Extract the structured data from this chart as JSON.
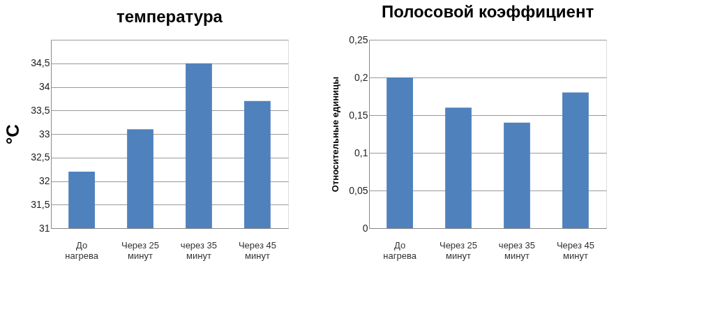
{
  "chart_data": [
    {
      "type": "bar",
      "title": "температура",
      "ylabel": "°C",
      "categories": [
        "До нагрева",
        "Через 25 минут",
        "через 35 минут",
        "Через 45 минут"
      ],
      "values": [
        32.2,
        33.1,
        34.5,
        33.7
      ],
      "color": "#4f81bd",
      "ylim": [
        31,
        35
      ],
      "yticks": [
        31,
        {
          "value": 31.5,
          "label": "31,5"
        },
        32,
        {
          "value": 32.5,
          "label": "32,5"
        },
        33,
        {
          "value": 33.5,
          "label": "33,5"
        },
        34,
        {
          "value": 34.5,
          "label": "34,5"
        },
        {
          "value": 35,
          "label": null
        }
      ],
      "grid": "y"
    },
    {
      "type": "bar",
      "title": "Полосовой коэффициент",
      "ylabel": "Относительные единицы",
      "categories": [
        "До нагрева",
        "Через 25 минут",
        "через 35 минут",
        "Через 45 минут"
      ],
      "values": [
        0.2,
        0.16,
        0.14,
        0.18
      ],
      "color": "#4f81bd",
      "ylim": [
        0,
        0.25
      ],
      "yticks": [
        0,
        {
          "value": 0.05,
          "label": "0,05"
        },
        {
          "value": 0.1,
          "label": "0,1"
        },
        {
          "value": 0.15,
          "label": "0,15"
        },
        {
          "value": 0.2,
          "label": "0,2"
        },
        {
          "value": 0.25,
          "label": "0,25"
        }
      ],
      "grid": "y"
    }
  ]
}
